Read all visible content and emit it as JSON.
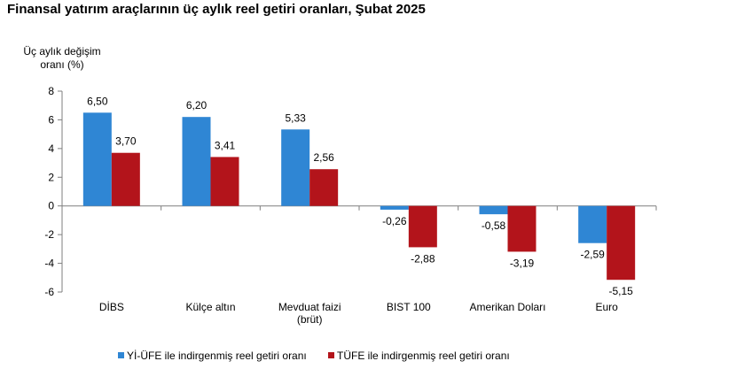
{
  "chart_data": {
    "type": "bar",
    "title": "Finansal yatırım araçlarının üç aylık reel getiri oranları, Şubat 2025",
    "ylabel": [
      "Üç aylık değişim",
      "oranı (%)"
    ],
    "categories": [
      [
        "DİBS"
      ],
      [
        "Külçe altın"
      ],
      [
        "Mevduat faizi",
        "(brüt)"
      ],
      [
        "BIST 100"
      ],
      [
        "Amerikan Doları"
      ],
      [
        "Euro"
      ]
    ],
    "series": [
      {
        "name": "Yİ-ÜFE ile indirgenmiş reel getiri oranı",
        "color": "#2f86d4",
        "values": [
          6.5,
          6.2,
          5.33,
          -0.26,
          -0.58,
          -2.59
        ],
        "labels": [
          "6,50",
          "6,20",
          "5,33",
          "-0,26",
          "-0,58",
          "-2,59"
        ]
      },
      {
        "name": "TÜFE ile indirgenmiş reel getiri oranı",
        "color": "#b3141b",
        "values": [
          3.7,
          3.41,
          2.56,
          -2.88,
          -3.19,
          -5.15
        ],
        "labels": [
          "3,70",
          "3,41",
          "2,56",
          "-2,88",
          "-3,19",
          "-5,15"
        ]
      }
    ],
    "ylim": [
      -6,
      8
    ],
    "yticks": [
      8,
      6,
      4,
      2,
      0,
      -2,
      -4,
      -6
    ],
    "grid": false,
    "legend_position": "bottom"
  }
}
